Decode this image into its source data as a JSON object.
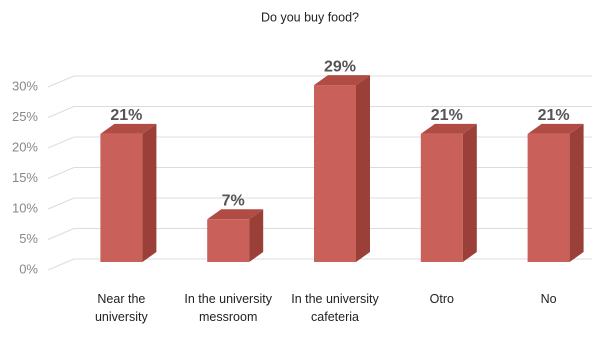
{
  "chart_data": {
    "type": "bar3d",
    "title": "Do you buy food?",
    "categories": [
      "Near the university",
      "In the university messroom",
      "In the university cafeteria",
      "Otro",
      "No"
    ],
    "values": [
      21,
      7,
      29,
      21,
      21
    ],
    "value_labels": [
      "21%",
      "7%",
      "29%",
      "21%",
      "21%"
    ],
    "color": "#c9605a",
    "ylim": [
      0,
      30
    ],
    "yticks": [
      {
        "value": 0,
        "label": "0%"
      },
      {
        "value": 5,
        "label": "5%"
      },
      {
        "value": 10,
        "label": "10%"
      },
      {
        "value": 15,
        "label": "15%"
      },
      {
        "value": 20,
        "label": "20%"
      },
      {
        "value": 25,
        "label": "25%"
      },
      {
        "value": 30,
        "label": "30%"
      }
    ],
    "grid": true
  }
}
